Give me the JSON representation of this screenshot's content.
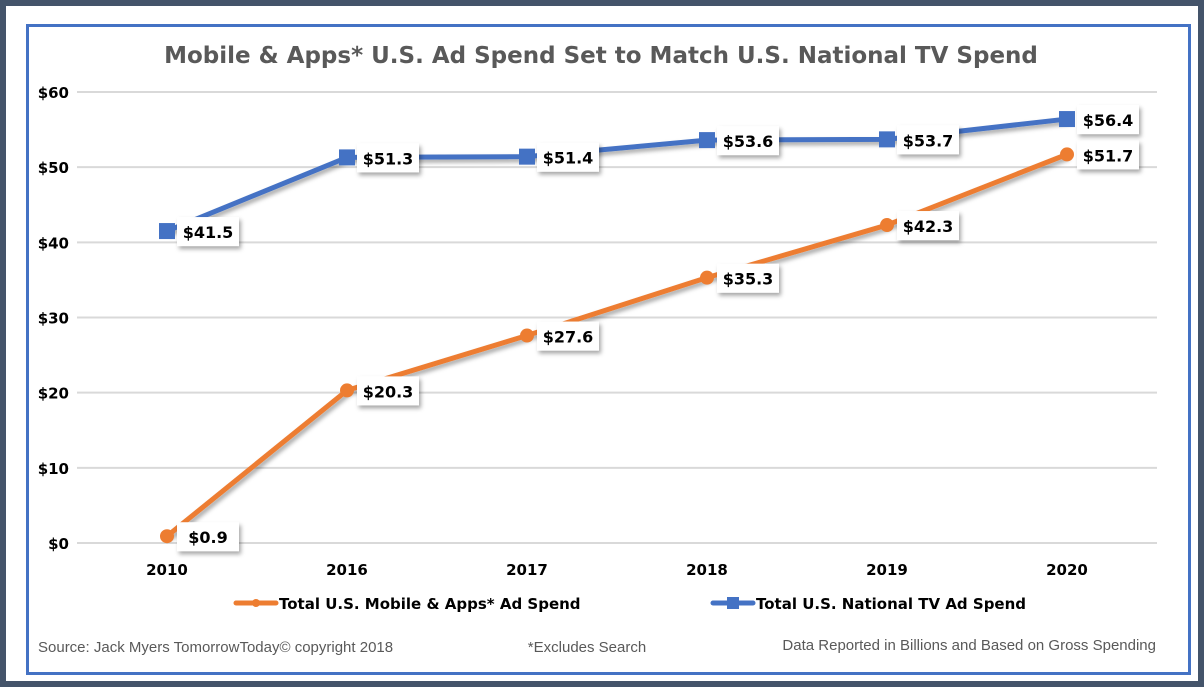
{
  "chart_data": {
    "type": "line",
    "title": "Mobile & Apps* U.S. Ad Spend Set to Match U.S. National TV Spend",
    "xlabel": "",
    "ylabel": "",
    "categories": [
      "2010",
      "2016",
      "2017",
      "2018",
      "2019",
      "2020"
    ],
    "ylim": [
      0,
      60
    ],
    "yticks": [
      0,
      10,
      20,
      30,
      40,
      50,
      60
    ],
    "ytick_labels": [
      "$0",
      "$10",
      "$20",
      "$30",
      "$40",
      "$50",
      "$60"
    ],
    "grid": true,
    "legend_position": "bottom",
    "series": [
      {
        "name": "Total U.S. Mobile & Apps* Ad Spend",
        "color": "#ed7d31",
        "marker": "circle",
        "values": [
          0.9,
          20.3,
          27.6,
          35.3,
          42.3,
          51.7
        ],
        "labels": [
          "$0.9",
          "$20.3",
          "$27.6",
          "$35.3",
          "$42.3",
          "$51.7"
        ]
      },
      {
        "name": "Total U.S. National TV Ad Spend",
        "color": "#4472c4",
        "marker": "square",
        "values": [
          41.5,
          51.3,
          51.4,
          53.6,
          53.7,
          56.4
        ],
        "labels": [
          "$41.5",
          "$51.3",
          "$51.4",
          "$53.6",
          "$53.7",
          "$56.4"
        ]
      }
    ]
  },
  "footer": {
    "source": "Source: Jack Myers TomorrowToday© copyright 2018",
    "note": "*Excludes Search",
    "units": "Data Reported in Billions and Based on Gross Spending"
  },
  "colors": {
    "background": "#44546a",
    "frame": "#4472c4",
    "grid": "#d9d9d9"
  }
}
